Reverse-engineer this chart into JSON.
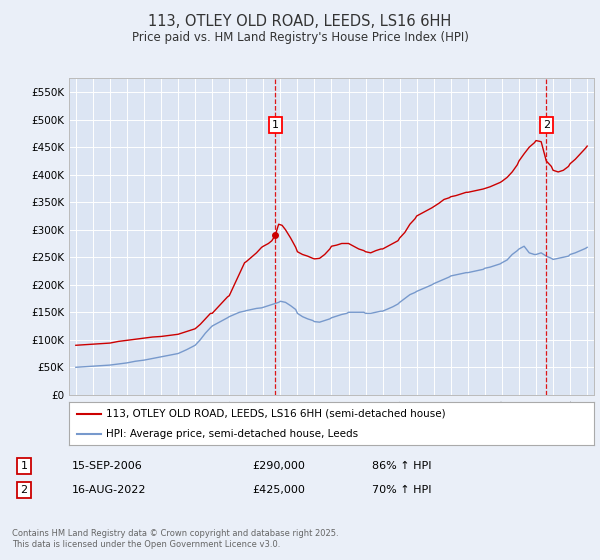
{
  "title": "113, OTLEY OLD ROAD, LEEDS, LS16 6HH",
  "subtitle": "Price paid vs. HM Land Registry's House Price Index (HPI)",
  "background_color": "#eaeff8",
  "plot_bg_color": "#dce5f3",
  "ylim": [
    0,
    575000
  ],
  "yticks": [
    0,
    50000,
    100000,
    150000,
    200000,
    250000,
    300000,
    350000,
    400000,
    450000,
    500000,
    550000
  ],
  "ytick_labels": [
    "£0",
    "£50K",
    "£100K",
    "£150K",
    "£200K",
    "£250K",
    "£300K",
    "£350K",
    "£400K",
    "£450K",
    "£500K",
    "£550K"
  ],
  "xlim_start": 1994.6,
  "xlim_end": 2025.4,
  "xticks": [
    1995,
    1996,
    1997,
    1998,
    1999,
    2000,
    2001,
    2002,
    2003,
    2004,
    2005,
    2006,
    2007,
    2008,
    2009,
    2010,
    2011,
    2012,
    2013,
    2014,
    2015,
    2016,
    2017,
    2018,
    2019,
    2020,
    2021,
    2022,
    2023,
    2024,
    2025
  ],
  "marker1_x": 2006.7,
  "marker1_y": 290000,
  "marker1_label": "1",
  "marker1_date": "15-SEP-2006",
  "marker1_price": "£290,000",
  "marker1_hpi": "86% ↑ HPI",
  "marker2_x": 2022.6,
  "marker2_y": 425000,
  "marker2_label": "2",
  "marker2_date": "16-AUG-2022",
  "marker2_price": "£425,000",
  "marker2_hpi": "70% ↑ HPI",
  "red_line_color": "#cc0000",
  "blue_line_color": "#7799cc",
  "grid_color": "#ffffff",
  "legend_label_red": "113, OTLEY OLD ROAD, LEEDS, LS16 6HH (semi-detached house)",
  "legend_label_blue": "HPI: Average price, semi-detached house, Leeds",
  "footer": "Contains HM Land Registry data © Crown copyright and database right 2025.\nThis data is licensed under the Open Government Licence v3.0.",
  "red_data": [
    [
      1995.0,
      90000
    ],
    [
      1995.5,
      91000
    ],
    [
      1996.0,
      92000
    ],
    [
      1996.5,
      93000
    ],
    [
      1997.0,
      94000
    ],
    [
      1997.5,
      97000
    ],
    [
      1998.0,
      99000
    ],
    [
      1998.5,
      101000
    ],
    [
      1999.0,
      103000
    ],
    [
      1999.5,
      105000
    ],
    [
      2000.0,
      106000
    ],
    [
      2000.5,
      108000
    ],
    [
      2001.0,
      110000
    ],
    [
      2001.5,
      115000
    ],
    [
      2002.0,
      120000
    ],
    [
      2002.3,
      128000
    ],
    [
      2002.6,
      138000
    ],
    [
      2002.9,
      148000
    ],
    [
      2003.0,
      148000
    ],
    [
      2003.3,
      158000
    ],
    [
      2003.6,
      168000
    ],
    [
      2003.9,
      178000
    ],
    [
      2004.0,
      180000
    ],
    [
      2004.3,
      200000
    ],
    [
      2004.6,
      220000
    ],
    [
      2004.9,
      240000
    ],
    [
      2005.0,
      242000
    ],
    [
      2005.3,
      250000
    ],
    [
      2005.6,
      258000
    ],
    [
      2005.9,
      268000
    ],
    [
      2006.0,
      270000
    ],
    [
      2006.3,
      275000
    ],
    [
      2006.5,
      280000
    ],
    [
      2006.7,
      290000
    ],
    [
      2006.9,
      310000
    ],
    [
      2007.1,
      308000
    ],
    [
      2007.3,
      300000
    ],
    [
      2007.6,
      285000
    ],
    [
      2007.9,
      268000
    ],
    [
      2008.0,
      260000
    ],
    [
      2008.3,
      255000
    ],
    [
      2008.6,
      252000
    ],
    [
      2008.9,
      248000
    ],
    [
      2009.0,
      247000
    ],
    [
      2009.3,
      248000
    ],
    [
      2009.6,
      255000
    ],
    [
      2009.9,
      265000
    ],
    [
      2010.0,
      270000
    ],
    [
      2010.3,
      272000
    ],
    [
      2010.6,
      275000
    ],
    [
      2010.9,
      275000
    ],
    [
      2011.0,
      275000
    ],
    [
      2011.3,
      270000
    ],
    [
      2011.6,
      265000
    ],
    [
      2011.9,
      262000
    ],
    [
      2012.0,
      260000
    ],
    [
      2012.3,
      258000
    ],
    [
      2012.6,
      262000
    ],
    [
      2012.9,
      265000
    ],
    [
      2013.0,
      265000
    ],
    [
      2013.3,
      270000
    ],
    [
      2013.6,
      275000
    ],
    [
      2013.9,
      280000
    ],
    [
      2014.0,
      285000
    ],
    [
      2014.3,
      295000
    ],
    [
      2014.6,
      310000
    ],
    [
      2014.9,
      320000
    ],
    [
      2015.0,
      325000
    ],
    [
      2015.3,
      330000
    ],
    [
      2015.6,
      335000
    ],
    [
      2015.9,
      340000
    ],
    [
      2016.0,
      342000
    ],
    [
      2016.3,
      348000
    ],
    [
      2016.6,
      355000
    ],
    [
      2016.9,
      358000
    ],
    [
      2017.0,
      360000
    ],
    [
      2017.3,
      362000
    ],
    [
      2017.6,
      365000
    ],
    [
      2017.9,
      368000
    ],
    [
      2018.0,
      368000
    ],
    [
      2018.3,
      370000
    ],
    [
      2018.6,
      372000
    ],
    [
      2018.9,
      374000
    ],
    [
      2019.0,
      375000
    ],
    [
      2019.3,
      378000
    ],
    [
      2019.6,
      382000
    ],
    [
      2019.9,
      386000
    ],
    [
      2020.0,
      388000
    ],
    [
      2020.3,
      395000
    ],
    [
      2020.6,
      405000
    ],
    [
      2020.9,
      418000
    ],
    [
      2021.0,
      425000
    ],
    [
      2021.3,
      438000
    ],
    [
      2021.6,
      450000
    ],
    [
      2021.9,
      458000
    ],
    [
      2022.0,
      462000
    ],
    [
      2022.3,
      460000
    ],
    [
      2022.6,
      425000
    ],
    [
      2022.9,
      415000
    ],
    [
      2023.0,
      408000
    ],
    [
      2023.3,
      405000
    ],
    [
      2023.6,
      408000
    ],
    [
      2023.9,
      415000
    ],
    [
      2024.0,
      420000
    ],
    [
      2024.3,
      428000
    ],
    [
      2024.6,
      438000
    ],
    [
      2024.9,
      448000
    ],
    [
      2025.0,
      452000
    ]
  ],
  "blue_data": [
    [
      1995.0,
      50000
    ],
    [
      1995.5,
      51000
    ],
    [
      1996.0,
      52000
    ],
    [
      1996.5,
      53000
    ],
    [
      1997.0,
      54000
    ],
    [
      1997.5,
      56000
    ],
    [
      1998.0,
      58000
    ],
    [
      1998.5,
      61000
    ],
    [
      1999.0,
      63000
    ],
    [
      1999.5,
      66000
    ],
    [
      2000.0,
      69000
    ],
    [
      2000.5,
      72000
    ],
    [
      2001.0,
      75000
    ],
    [
      2001.5,
      82000
    ],
    [
      2002.0,
      90000
    ],
    [
      2002.3,
      100000
    ],
    [
      2002.6,
      112000
    ],
    [
      2002.9,
      122000
    ],
    [
      2003.0,
      125000
    ],
    [
      2003.3,
      130000
    ],
    [
      2003.6,
      135000
    ],
    [
      2003.9,
      140000
    ],
    [
      2004.0,
      142000
    ],
    [
      2004.3,
      146000
    ],
    [
      2004.6,
      150000
    ],
    [
      2004.9,
      152000
    ],
    [
      2005.0,
      153000
    ],
    [
      2005.3,
      155000
    ],
    [
      2005.6,
      157000
    ],
    [
      2005.9,
      158000
    ],
    [
      2006.0,
      159000
    ],
    [
      2006.3,
      162000
    ],
    [
      2006.6,
      165000
    ],
    [
      2006.9,
      168000
    ],
    [
      2007.0,
      170000
    ],
    [
      2007.3,
      168000
    ],
    [
      2007.6,
      162000
    ],
    [
      2007.9,
      155000
    ],
    [
      2008.0,
      148000
    ],
    [
      2008.3,
      142000
    ],
    [
      2008.6,
      138000
    ],
    [
      2008.9,
      135000
    ],
    [
      2009.0,
      133000
    ],
    [
      2009.3,
      132000
    ],
    [
      2009.6,
      135000
    ],
    [
      2009.9,
      138000
    ],
    [
      2010.0,
      140000
    ],
    [
      2010.3,
      143000
    ],
    [
      2010.6,
      146000
    ],
    [
      2010.9,
      148000
    ],
    [
      2011.0,
      150000
    ],
    [
      2011.3,
      150000
    ],
    [
      2011.6,
      150000
    ],
    [
      2011.9,
      150000
    ],
    [
      2012.0,
      148000
    ],
    [
      2012.3,
      148000
    ],
    [
      2012.6,
      150000
    ],
    [
      2012.9,
      152000
    ],
    [
      2013.0,
      152000
    ],
    [
      2013.3,
      156000
    ],
    [
      2013.6,
      160000
    ],
    [
      2013.9,
      165000
    ],
    [
      2014.0,
      168000
    ],
    [
      2014.3,
      175000
    ],
    [
      2014.6,
      182000
    ],
    [
      2014.9,
      186000
    ],
    [
      2015.0,
      188000
    ],
    [
      2015.3,
      192000
    ],
    [
      2015.6,
      196000
    ],
    [
      2015.9,
      200000
    ],
    [
      2016.0,
      202000
    ],
    [
      2016.3,
      206000
    ],
    [
      2016.6,
      210000
    ],
    [
      2016.9,
      214000
    ],
    [
      2017.0,
      216000
    ],
    [
      2017.3,
      218000
    ],
    [
      2017.6,
      220000
    ],
    [
      2017.9,
      222000
    ],
    [
      2018.0,
      222000
    ],
    [
      2018.3,
      224000
    ],
    [
      2018.6,
      226000
    ],
    [
      2018.9,
      228000
    ],
    [
      2019.0,
      230000
    ],
    [
      2019.3,
      232000
    ],
    [
      2019.6,
      235000
    ],
    [
      2019.9,
      238000
    ],
    [
      2020.0,
      240000
    ],
    [
      2020.3,
      245000
    ],
    [
      2020.6,
      255000
    ],
    [
      2020.9,
      262000
    ],
    [
      2021.0,
      265000
    ],
    [
      2021.3,
      270000
    ],
    [
      2021.6,
      258000
    ],
    [
      2021.9,
      255000
    ],
    [
      2022.0,
      255000
    ],
    [
      2022.3,
      258000
    ],
    [
      2022.6,
      252000
    ],
    [
      2022.9,
      248000
    ],
    [
      2023.0,
      246000
    ],
    [
      2023.3,
      248000
    ],
    [
      2023.6,
      250000
    ],
    [
      2023.9,
      252000
    ],
    [
      2024.0,
      255000
    ],
    [
      2024.3,
      258000
    ],
    [
      2024.6,
      262000
    ],
    [
      2024.9,
      266000
    ],
    [
      2025.0,
      268000
    ]
  ]
}
